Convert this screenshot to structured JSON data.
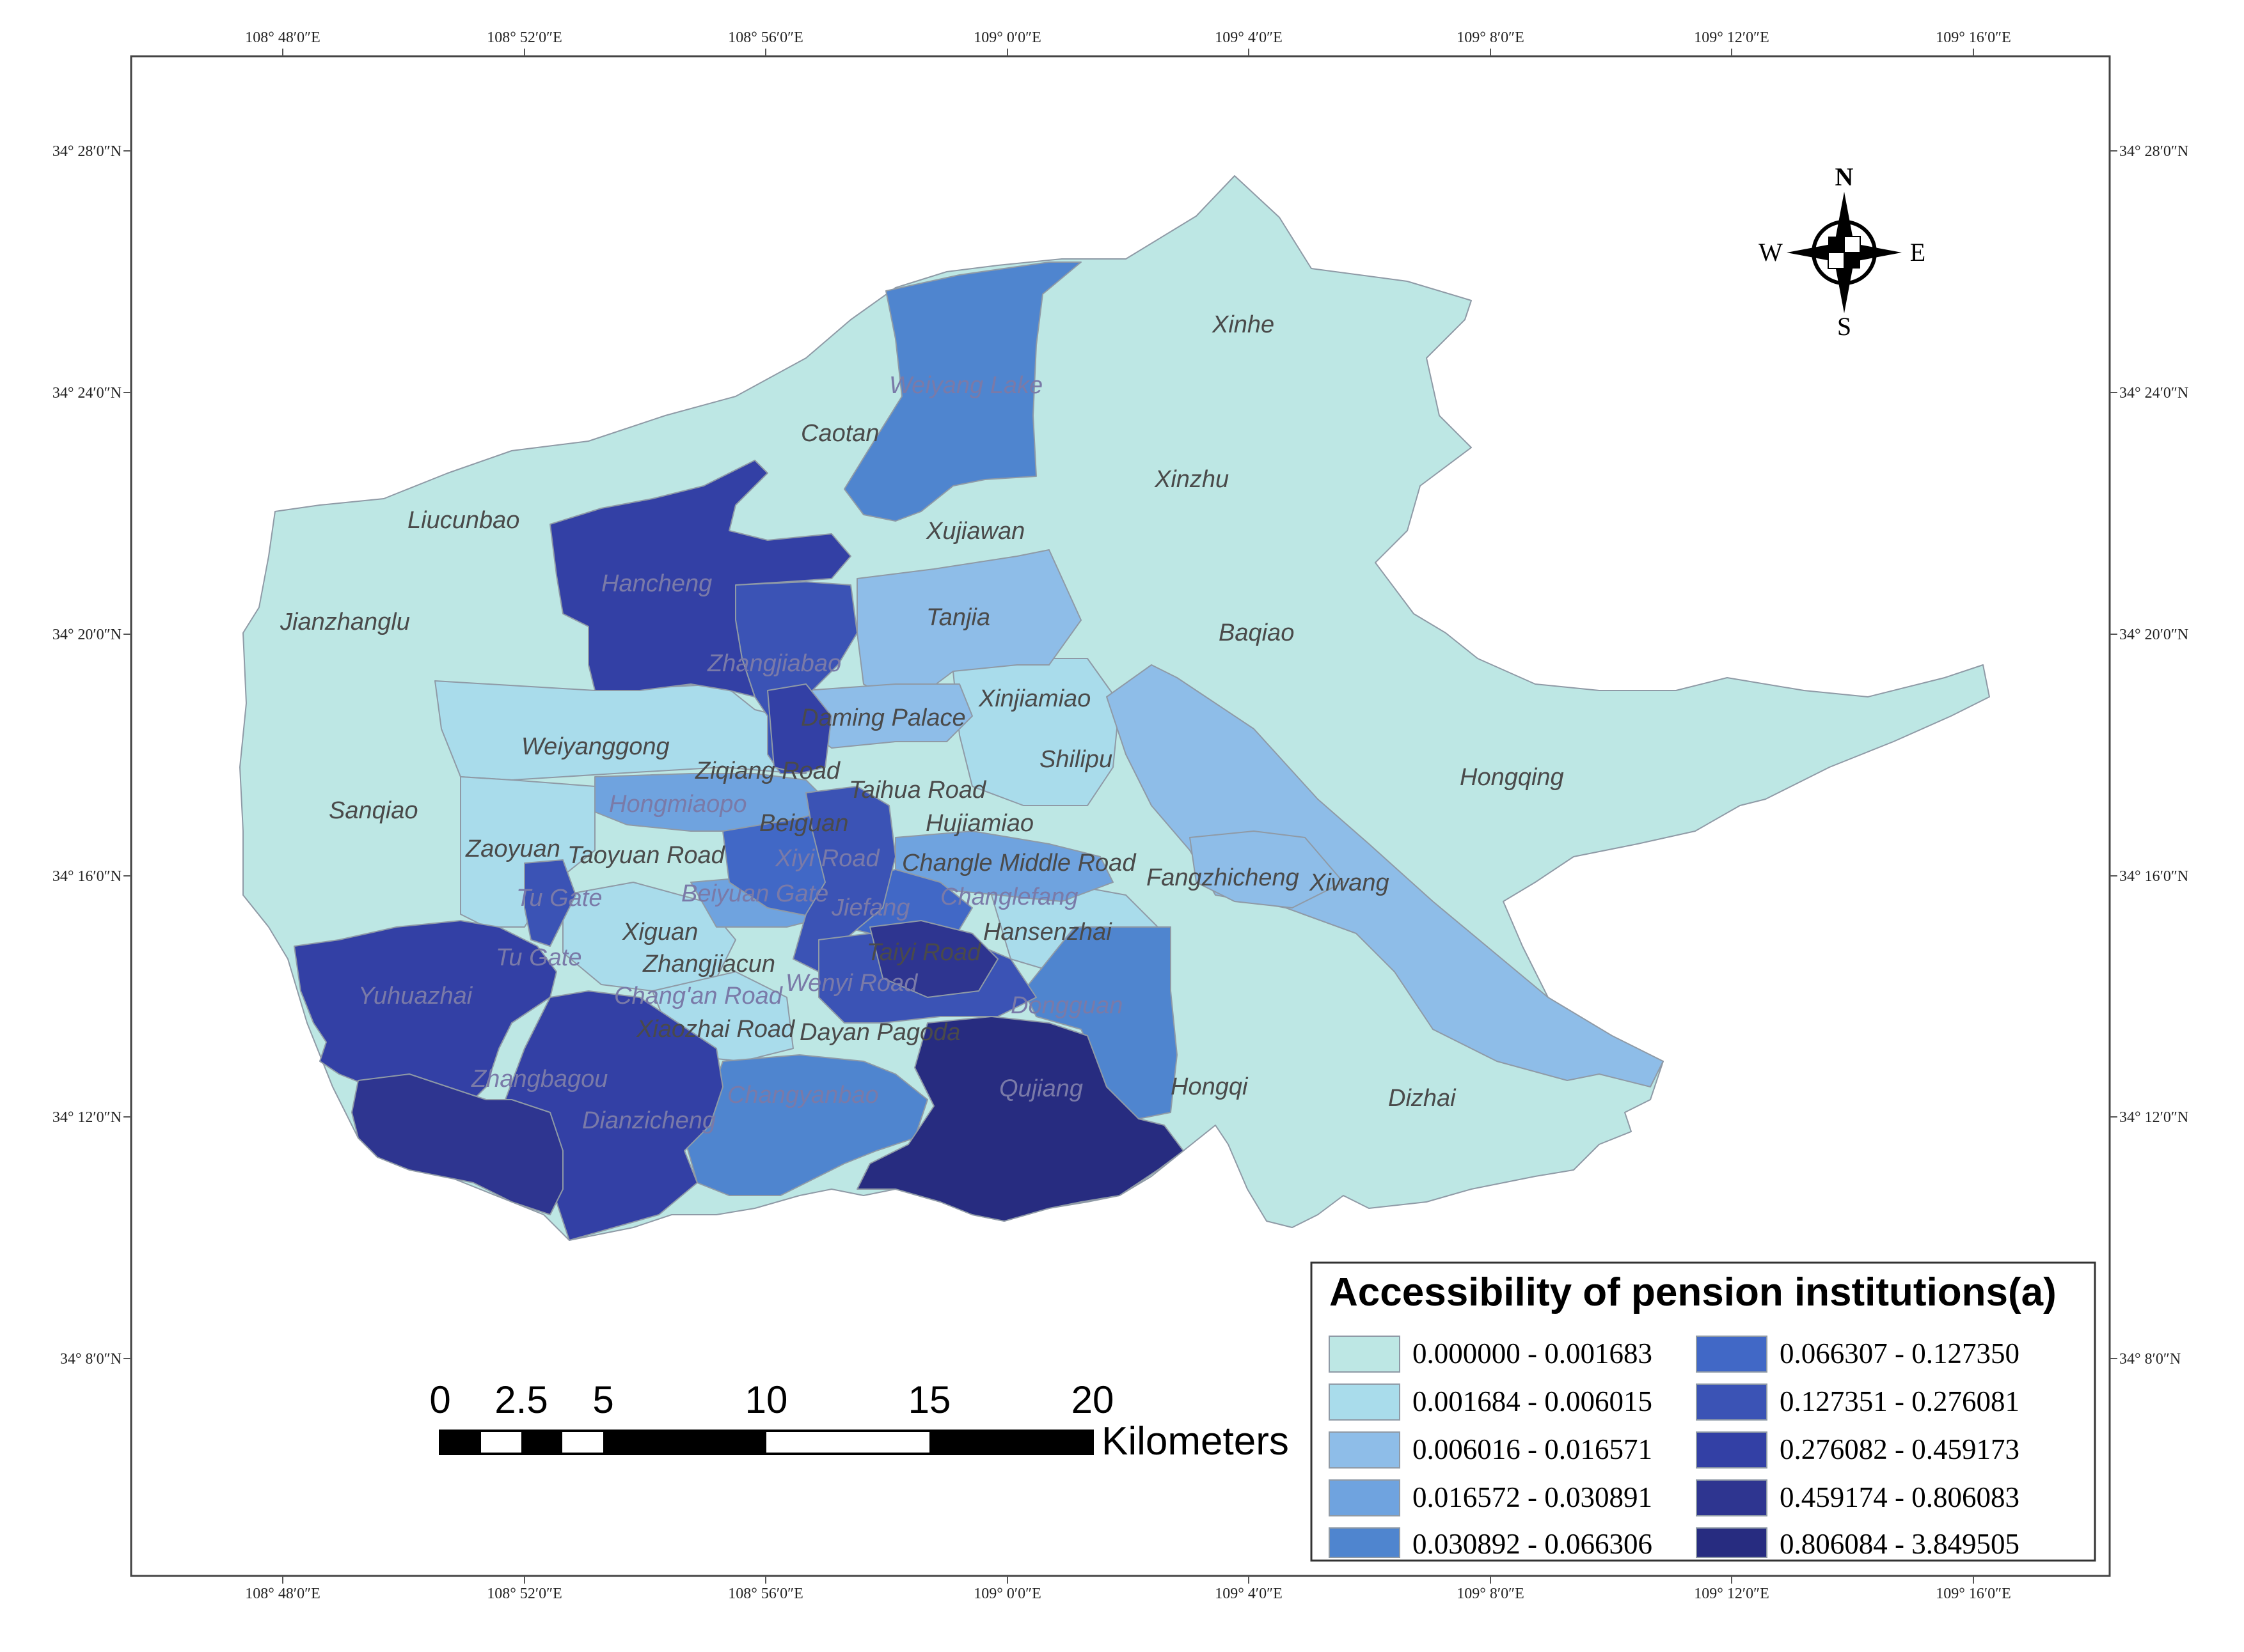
{
  "colors": {
    "class_0": "#bde7e4",
    "class_1": "#a9dceb",
    "class_2": "#8ebde8",
    "class_3": "#6fa3df",
    "class_4": "#4f85cf",
    "class_5": "#4168c6",
    "class_6": "#3b53b5",
    "class_7": "#3340a5",
    "class_8": "#2e3590",
    "class_9": "#272c80"
  },
  "coordinates": {
    "longitude_labels": [
      "108° 48′0″E",
      "108° 52′0″E",
      "108° 56′0″E",
      "109° 0′0″E",
      "109° 4′0″E",
      "109° 8′0″E",
      "109° 12′0″E",
      "109° 16′0″E"
    ],
    "latitude_labels": [
      "34° 28′0″N",
      "34° 24′0″N",
      "34° 20′0″N",
      "34° 16′0″N",
      "34° 12′0″N",
      "34° 8′0″N"
    ]
  },
  "places": {
    "xinhe": "Xinhe",
    "weiyang_lake": "Weiyang Lake",
    "caotan": "Caotan",
    "liucunbao": "Liucunbao",
    "xinzhu": "Xinzhu",
    "xujiawan": "Xujiawan",
    "hancheng": "Hancheng",
    "tanjia": "Tanjia",
    "jianzhanglu": "Jianzhanglu",
    "baqiao": "Baqiao",
    "zhangjiabao": "Zhangjiabao",
    "xinjiamiao": "Xinjiamiao",
    "daming_palace": "Daming Palace",
    "weiyanggong": "Weiyanggong",
    "shilipu": "Shilipu",
    "ziqiang_road": "Ziqiang Road",
    "taihua_road": "Taihua Road",
    "hongqing": "Hongqing",
    "sanqiao": "Sanqiao",
    "hongmiaopo": "Hongmiaopo",
    "beiguan": "Beiguan",
    "hujiamiao": "Hujiamiao",
    "zaoyuan": "Zaoyuan",
    "taoyuan_road": "Taoyuan Road",
    "xiyi_road": "Xiyi Road",
    "changle_middle_road": "Changle Middle Road",
    "fangzhicheng": "Fangzhicheng",
    "xiwang": "Xiwang",
    "tu_gate_north": "Tu Gate",
    "beiyuan_gate": "Beiyuan Gate",
    "jiefang": "Jiefang",
    "changlefang": "Changlefang",
    "xiguan": "Xiguan",
    "hansenzhai": "Hansenzhai",
    "tu_gate_south": "Tu Gate",
    "zhangjiacun": "Zhangjiacun",
    "taiyi_road": "Taiyi Road",
    "yuhuazhai": "Yuhuazhai",
    "changan_road": "Chang'an Road",
    "wenyi_road": "Wenyi Road",
    "dongguan": "Dongguan",
    "xiaozhai_road": "Xiaozhai Road",
    "dayan_pagoda": "Dayan Pagoda",
    "zhangbagou": "Zhangbagou",
    "qujiang": "Qujiang",
    "hongqi": "Hongqi",
    "changyanbao": "Changyanbao",
    "dizhai": "Dizhai",
    "dianzicheng": "Dianzicheng"
  },
  "compass": {
    "north": "N",
    "south": "S",
    "east": "E",
    "west": "W"
  },
  "scale_bar": {
    "ticks": [
      "0",
      "2.5",
      "5",
      "10",
      "15",
      "20"
    ],
    "unit": "Kilometers"
  },
  "legend": {
    "title": "Accessibility of pension institutions(a)",
    "items": [
      {
        "label": "0.000000 - 0.001683",
        "color": "#bde7e4"
      },
      {
        "label": "0.001684 - 0.006015",
        "color": "#a9dceb"
      },
      {
        "label": "0.006016 - 0.016571",
        "color": "#8ebde8"
      },
      {
        "label": "0.016572 - 0.030891",
        "color": "#6fa3df"
      },
      {
        "label": "0.030892 - 0.066306",
        "color": "#4f85cf"
      },
      {
        "label": "0.066307 - 0.127350",
        "color": "#4168c6"
      },
      {
        "label": "0.127351 - 0.276081",
        "color": "#3b53b5"
      },
      {
        "label": "0.276082 - 0.459173",
        "color": "#3340a5"
      },
      {
        "label": "0.459174 - 0.806083",
        "color": "#2e3590"
      },
      {
        "label": "0.806084 - 3.849505",
        "color": "#272c80"
      }
    ]
  }
}
